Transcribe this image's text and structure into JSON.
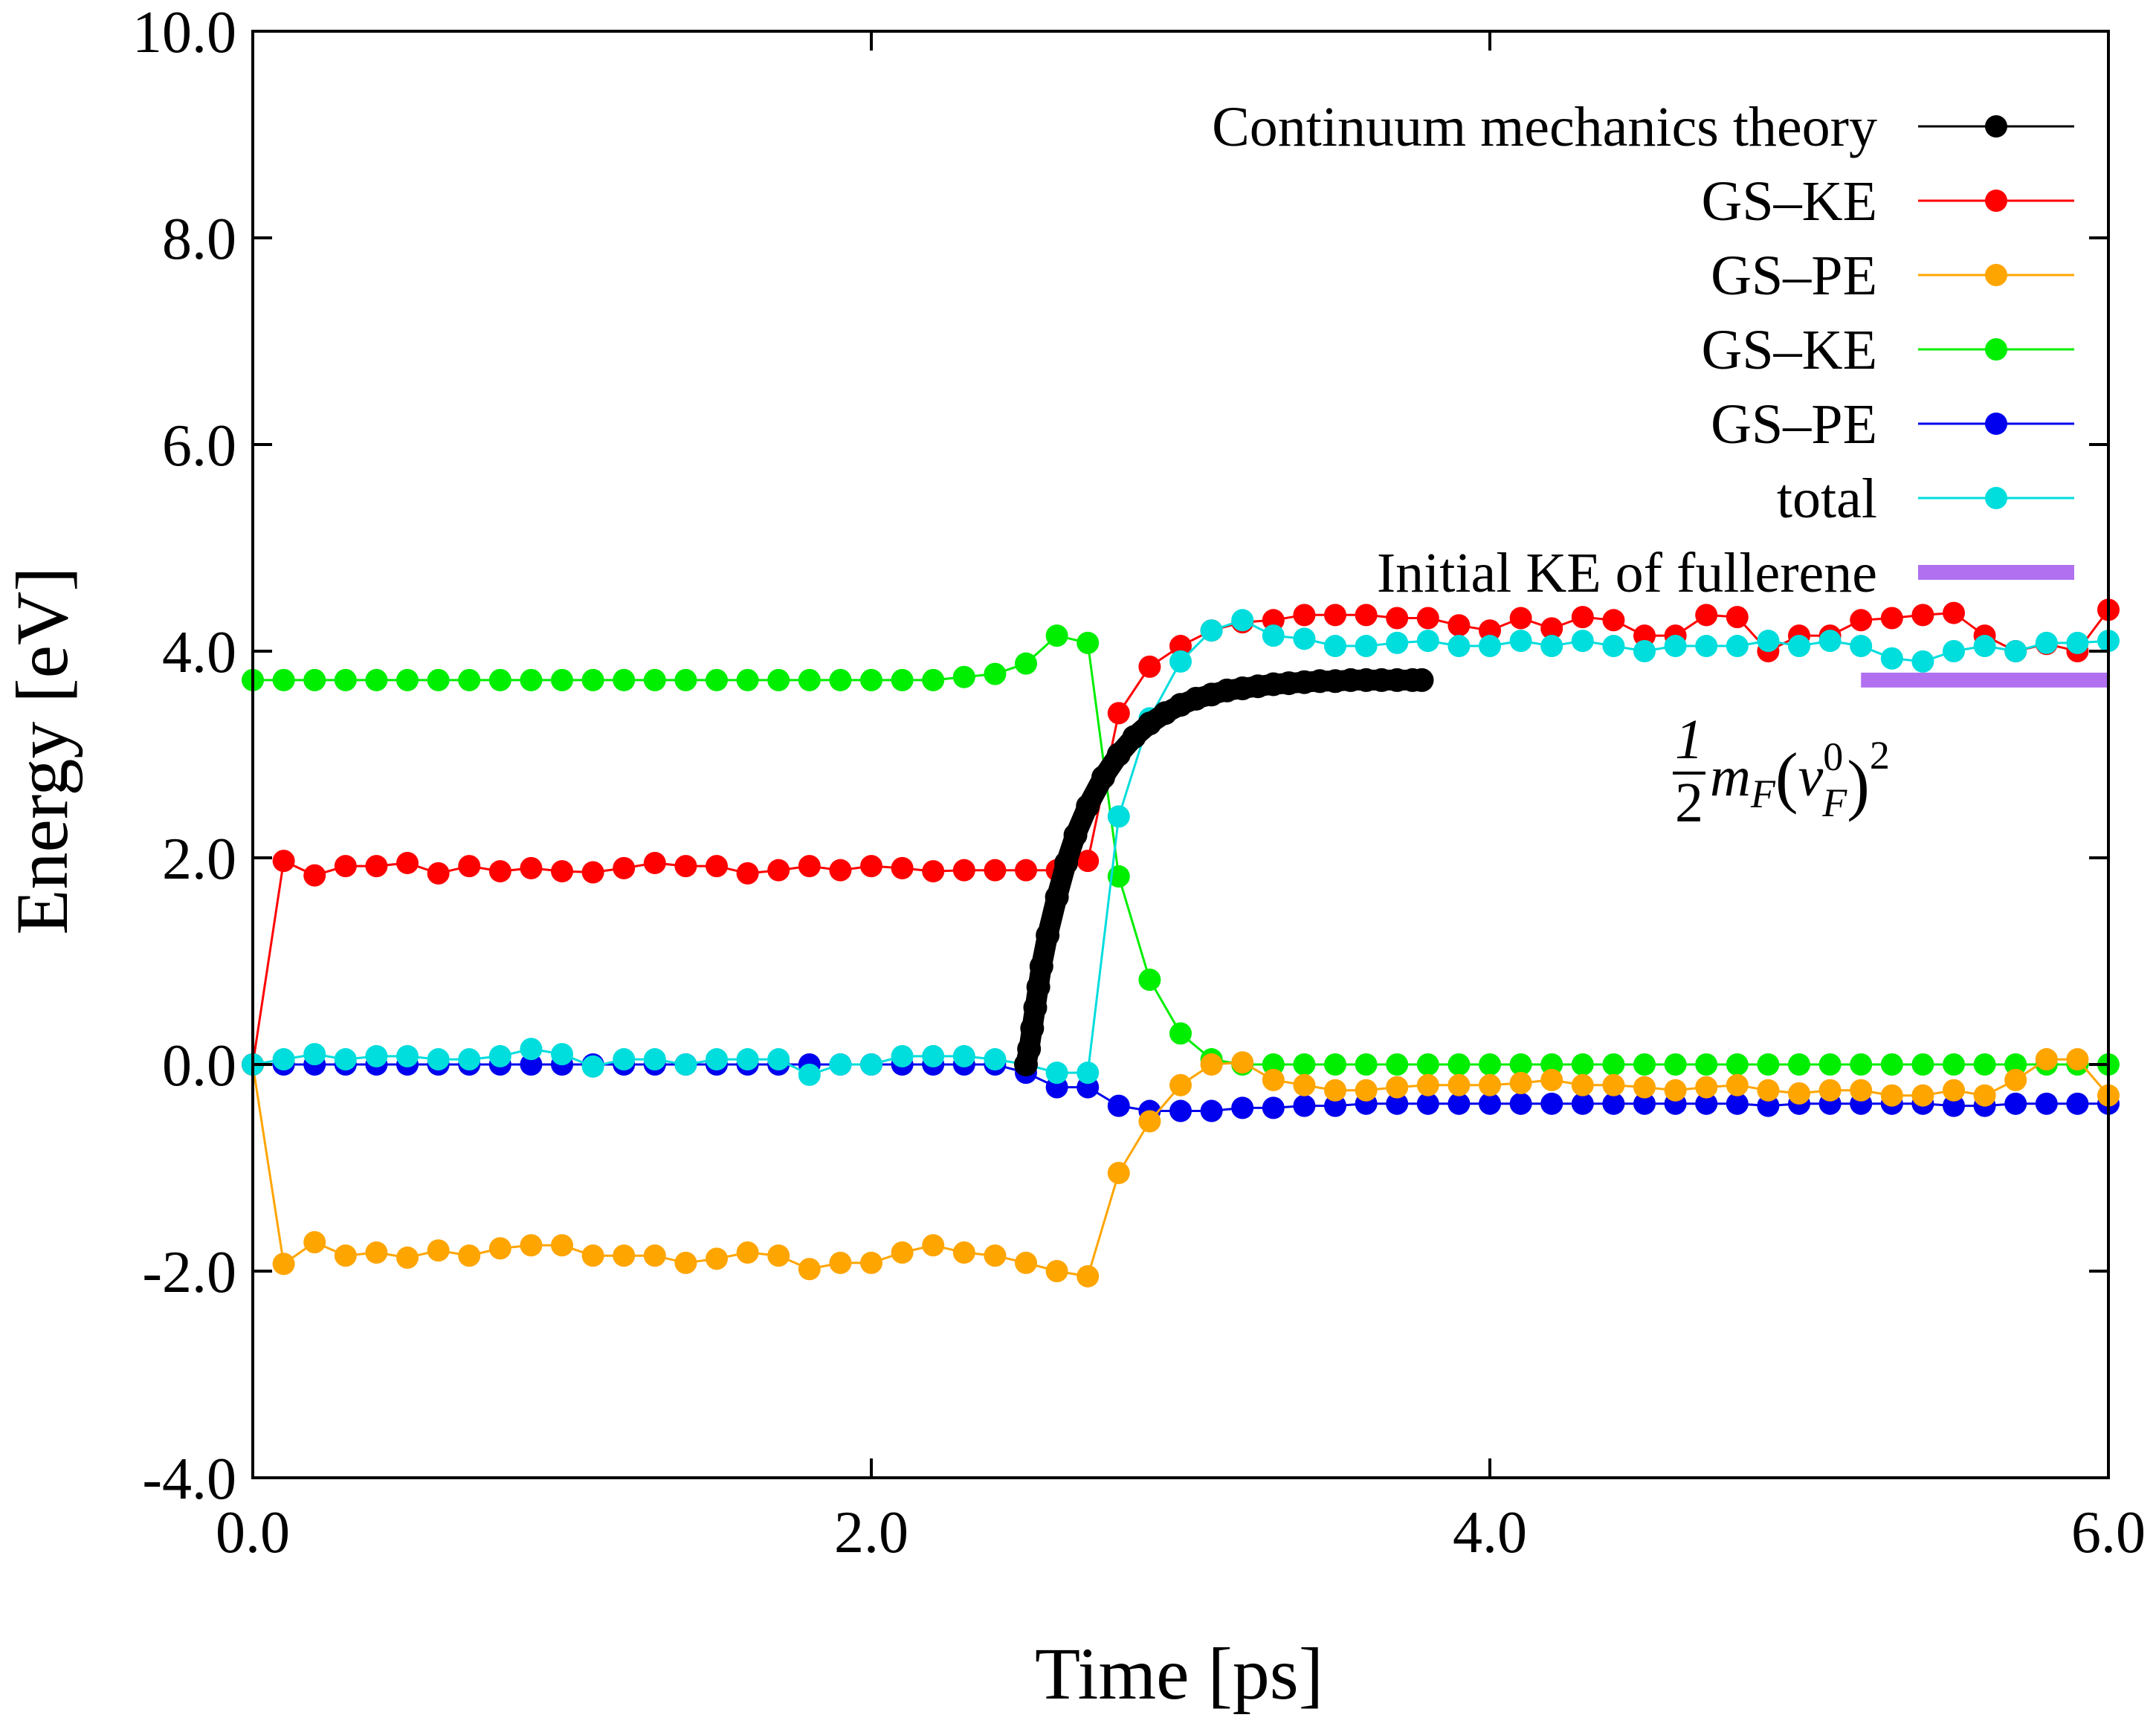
{
  "chart_data": {
    "type": "line",
    "xlabel": "Time [ps]",
    "ylabel": "Energy [eV]",
    "xlim": [
      0,
      6
    ],
    "ylim": [
      -4,
      10
    ],
    "xticks": [
      0,
      2,
      4,
      6
    ],
    "xtick_labels": [
      "0.0",
      "2.0",
      "4.0",
      "6.0"
    ],
    "yticks": [
      -4,
      -2,
      0,
      2,
      4,
      6,
      8,
      10
    ],
    "ytick_labels": [
      "-4.0",
      "-2.0",
      "0.0",
      "2.0",
      "4.0",
      "6.0",
      "8.0",
      "10.0"
    ],
    "grid": false,
    "legend_position": "top-right",
    "annotation": {
      "text": "1/2 m_F (v_F^0)^2",
      "fraction_numerator": "1",
      "fraction_denominator": "2",
      "mass": "m",
      "mass_sub": "F",
      "velocity": "v",
      "velocity_sup": "0",
      "velocity_sub": "F",
      "open_paren": "(",
      "close_paren": ")",
      "power": "2"
    },
    "series": [
      {
        "name": "Continuum mechanics theory",
        "color": "#000000",
        "style": "line-marker-dense",
        "x": [
          2.5,
          2.51,
          2.52,
          2.53,
          2.54,
          2.55,
          2.57,
          2.6,
          2.63,
          2.66,
          2.7,
          2.75,
          2.8,
          2.85,
          2.9,
          2.95,
          3.0,
          3.05,
          3.1,
          3.15,
          3.2,
          3.25,
          3.3,
          3.35,
          3.4,
          3.45,
          3.5,
          3.55,
          3.6,
          3.65,
          3.7,
          3.75,
          3.78
        ],
        "y": [
          0.0,
          0.15,
          0.35,
          0.55,
          0.75,
          0.95,
          1.25,
          1.62,
          1.95,
          2.22,
          2.5,
          2.78,
          3.0,
          3.17,
          3.3,
          3.4,
          3.48,
          3.54,
          3.58,
          3.62,
          3.64,
          3.66,
          3.68,
          3.69,
          3.7,
          3.71,
          3.71,
          3.72,
          3.72,
          3.72,
          3.72,
          3.72,
          3.72
        ]
      },
      {
        "name": "GS–KE",
        "color": "#ff0000",
        "style": "line-marker",
        "x": [
          0.0,
          0.1,
          0.2,
          0.3,
          0.4,
          0.5,
          0.6,
          0.7,
          0.8,
          0.9,
          1.0,
          1.1,
          1.2,
          1.3,
          1.4,
          1.5,
          1.6,
          1.7,
          1.8,
          1.9,
          2.0,
          2.1,
          2.2,
          2.3,
          2.4,
          2.5,
          2.6,
          2.7,
          2.8,
          2.9,
          3.0,
          3.1,
          3.2,
          3.3,
          3.4,
          3.5,
          3.6,
          3.7,
          3.8,
          3.9,
          4.0,
          4.1,
          4.2,
          4.3,
          4.4,
          4.5,
          4.6,
          4.7,
          4.8,
          4.9,
          5.0,
          5.1,
          5.2,
          5.3,
          5.4,
          5.5,
          5.6,
          5.7,
          5.8,
          5.9,
          6.0
        ],
        "y": [
          0.0,
          1.97,
          1.83,
          1.92,
          1.92,
          1.95,
          1.85,
          1.92,
          1.87,
          1.9,
          1.87,
          1.86,
          1.9,
          1.95,
          1.92,
          1.92,
          1.85,
          1.88,
          1.92,
          1.88,
          1.92,
          1.9,
          1.87,
          1.88,
          1.88,
          1.88,
          1.88,
          1.97,
          3.4,
          3.85,
          4.05,
          4.2,
          4.28,
          4.3,
          4.35,
          4.35,
          4.35,
          4.32,
          4.32,
          4.25,
          4.2,
          4.32,
          4.22,
          4.33,
          4.3,
          4.15,
          4.15,
          4.35,
          4.33,
          4.0,
          4.15,
          4.15,
          4.3,
          4.32,
          4.35,
          4.37,
          4.15,
          4.0,
          4.07,
          4.0,
          4.4
        ]
      },
      {
        "name": "GS–PE",
        "color": "#ffa500",
        "style": "line-marker",
        "x": [
          0.0,
          0.1,
          0.2,
          0.3,
          0.4,
          0.5,
          0.6,
          0.7,
          0.8,
          0.9,
          1.0,
          1.1,
          1.2,
          1.3,
          1.4,
          1.5,
          1.6,
          1.7,
          1.8,
          1.9,
          2.0,
          2.1,
          2.2,
          2.3,
          2.4,
          2.5,
          2.6,
          2.7,
          2.8,
          2.9,
          3.0,
          3.1,
          3.2,
          3.3,
          3.4,
          3.5,
          3.6,
          3.7,
          3.8,
          3.9,
          4.0,
          4.1,
          4.2,
          4.3,
          4.4,
          4.5,
          4.6,
          4.7,
          4.8,
          4.9,
          5.0,
          5.1,
          5.2,
          5.3,
          5.4,
          5.5,
          5.6,
          5.7,
          5.8,
          5.9,
          6.0
        ],
        "y": [
          0.0,
          -1.93,
          -1.72,
          -1.85,
          -1.82,
          -1.87,
          -1.8,
          -1.85,
          -1.78,
          -1.75,
          -1.75,
          -1.85,
          -1.85,
          -1.85,
          -1.92,
          -1.88,
          -1.82,
          -1.85,
          -1.98,
          -1.92,
          -1.92,
          -1.82,
          -1.75,
          -1.82,
          -1.85,
          -1.92,
          -2.0,
          -2.05,
          -1.05,
          -0.55,
          -0.2,
          0.0,
          0.02,
          -0.15,
          -0.2,
          -0.25,
          -0.25,
          -0.22,
          -0.2,
          -0.2,
          -0.2,
          -0.18,
          -0.15,
          -0.2,
          -0.2,
          -0.22,
          -0.25,
          -0.22,
          -0.2,
          -0.25,
          -0.28,
          -0.25,
          -0.25,
          -0.3,
          -0.3,
          -0.25,
          -0.3,
          -0.15,
          0.05,
          0.05,
          -0.3
        ]
      },
      {
        "name": "GS–KE",
        "color": "#00ee00",
        "style": "line-marker",
        "x": [
          0.0,
          0.1,
          0.2,
          0.3,
          0.4,
          0.5,
          0.6,
          0.7,
          0.8,
          0.9,
          1.0,
          1.1,
          1.2,
          1.3,
          1.4,
          1.5,
          1.6,
          1.7,
          1.8,
          1.9,
          2.0,
          2.1,
          2.2,
          2.3,
          2.4,
          2.5,
          2.6,
          2.7,
          2.8,
          2.9,
          3.0,
          3.1,
          3.2,
          3.3,
          3.4,
          3.5,
          3.6,
          3.7,
          3.8,
          3.9,
          4.0,
          4.1,
          4.2,
          4.3,
          4.4,
          4.5,
          4.6,
          4.7,
          4.8,
          4.9,
          5.0,
          5.1,
          5.2,
          5.3,
          5.4,
          5.5,
          5.6,
          5.7,
          5.8,
          5.9,
          6.0
        ],
        "y": [
          3.72,
          3.72,
          3.72,
          3.72,
          3.72,
          3.72,
          3.72,
          3.72,
          3.72,
          3.72,
          3.72,
          3.72,
          3.72,
          3.72,
          3.72,
          3.72,
          3.72,
          3.72,
          3.72,
          3.72,
          3.72,
          3.72,
          3.72,
          3.75,
          3.78,
          3.88,
          4.15,
          4.08,
          1.82,
          0.82,
          0.3,
          0.05,
          0.0,
          0.0,
          0.0,
          0.0,
          0.0,
          0.0,
          0.0,
          0.0,
          0.0,
          0.0,
          0.0,
          0.0,
          0.0,
          0.0,
          0.0,
          0.0,
          0.0,
          0.0,
          0.0,
          0.0,
          0.0,
          0.0,
          0.0,
          0.0,
          0.0,
          0.0,
          0.0,
          0.0,
          0.0
        ]
      },
      {
        "name": "GS–PE",
        "color": "#0000ee",
        "style": "line-marker",
        "x": [
          0.0,
          0.1,
          0.2,
          0.3,
          0.4,
          0.5,
          0.6,
          0.7,
          0.8,
          0.9,
          1.0,
          1.1,
          1.2,
          1.3,
          1.4,
          1.5,
          1.6,
          1.7,
          1.8,
          1.9,
          2.0,
          2.1,
          2.2,
          2.3,
          2.4,
          2.5,
          2.6,
          2.7,
          2.8,
          2.9,
          3.0,
          3.1,
          3.2,
          3.3,
          3.4,
          3.5,
          3.6,
          3.7,
          3.8,
          3.9,
          4.0,
          4.1,
          4.2,
          4.3,
          4.4,
          4.5,
          4.6,
          4.7,
          4.8,
          4.9,
          5.0,
          5.1,
          5.2,
          5.3,
          5.4,
          5.5,
          5.6,
          5.7,
          5.8,
          5.9,
          6.0
        ],
        "y": [
          0.0,
          0.0,
          0.0,
          0.0,
          0.0,
          0.0,
          0.0,
          0.0,
          0.0,
          0.0,
          0.0,
          0.0,
          0.0,
          0.0,
          0.0,
          0.0,
          0.0,
          0.0,
          0.0,
          0.0,
          0.0,
          0.0,
          0.0,
          0.0,
          0.0,
          -0.08,
          -0.22,
          -0.22,
          -0.4,
          -0.45,
          -0.45,
          -0.45,
          -0.42,
          -0.42,
          -0.4,
          -0.4,
          -0.38,
          -0.38,
          -0.38,
          -0.38,
          -0.38,
          -0.38,
          -0.38,
          -0.38,
          -0.38,
          -0.38,
          -0.38,
          -0.38,
          -0.38,
          -0.4,
          -0.38,
          -0.38,
          -0.38,
          -0.38,
          -0.38,
          -0.4,
          -0.4,
          -0.38,
          -0.38,
          -0.38,
          -0.38
        ]
      },
      {
        "name": "total",
        "color": "#00dddd",
        "style": "line-marker",
        "x": [
          0.0,
          0.1,
          0.2,
          0.3,
          0.4,
          0.5,
          0.6,
          0.7,
          0.8,
          0.9,
          1.0,
          1.1,
          1.2,
          1.3,
          1.4,
          1.5,
          1.6,
          1.7,
          1.8,
          1.9,
          2.0,
          2.1,
          2.2,
          2.3,
          2.4,
          2.5,
          2.6,
          2.7,
          2.8,
          2.9,
          3.0,
          3.1,
          3.2,
          3.3,
          3.4,
          3.5,
          3.6,
          3.7,
          3.8,
          3.9,
          4.0,
          4.1,
          4.2,
          4.3,
          4.4,
          4.5,
          4.6,
          4.7,
          4.8,
          4.9,
          5.0,
          5.1,
          5.2,
          5.3,
          5.4,
          5.5,
          5.6,
          5.7,
          5.8,
          5.9,
          6.0
        ],
        "y": [
          0.0,
          0.05,
          0.1,
          0.05,
          0.08,
          0.08,
          0.05,
          0.05,
          0.08,
          0.15,
          0.1,
          -0.02,
          0.05,
          0.05,
          0.0,
          0.05,
          0.05,
          0.05,
          -0.1,
          0.0,
          0.0,
          0.08,
          0.08,
          0.08,
          0.05,
          0.0,
          -0.08,
          -0.08,
          2.4,
          3.35,
          3.9,
          4.2,
          4.3,
          4.15,
          4.12,
          4.05,
          4.05,
          4.08,
          4.1,
          4.05,
          4.05,
          4.1,
          4.05,
          4.1,
          4.05,
          4.0,
          4.05,
          4.05,
          4.05,
          4.1,
          4.05,
          4.1,
          4.05,
          3.93,
          3.9,
          4.0,
          4.05,
          4.0,
          4.08,
          4.08,
          4.1
        ]
      },
      {
        "name": "Initial KE of fullerene",
        "color": "#b070f0",
        "style": "thick-line",
        "x": [
          5.2,
          6.0
        ],
        "y": [
          3.72,
          3.72
        ]
      }
    ]
  }
}
